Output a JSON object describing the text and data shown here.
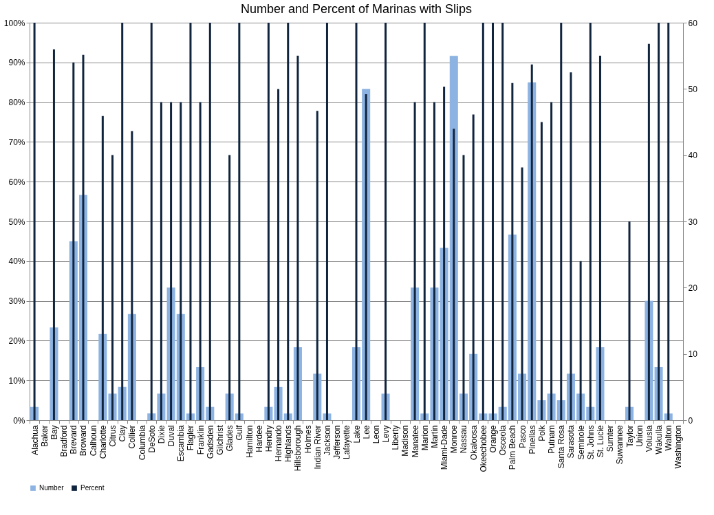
{
  "chart_data": {
    "type": "bar",
    "title": "Number and Percent of Marinas with Slips",
    "categories": [
      "Alachua",
      "Baker",
      "Bay",
      "Bradford",
      "Brevard",
      "Broward",
      "Calhoun",
      "Charlotte",
      "Citrus",
      "Clay",
      "Collier",
      "Columbia",
      "DeSoto",
      "Dixie",
      "Duval",
      "Escambia",
      "Flagler",
      "Franklin",
      "Gadsden",
      "Gilchrist",
      "Glades",
      "Gulf",
      "Hamilton",
      "Hardee",
      "Hendry",
      "Hernando",
      "Highlands",
      "Hillsborough",
      "Holmes",
      "Indian River",
      "Jackson",
      "Jefferson",
      "Lafayette",
      "Lake",
      "Lee",
      "Leon",
      "Levy",
      "Liberty",
      "Madison",
      "Manatee",
      "Marion",
      "Martin",
      "Miami-Dade",
      "Monroe",
      "Nassau",
      "Okaloosa",
      "Okeechobee",
      "Orange",
      "Osceola",
      "Palm Beach",
      "Pasco",
      "Pinellas",
      "Polk",
      "Putnam",
      "Santa Rosa",
      "Sarasota",
      "Seminole",
      "St. Johns",
      "St. Lucie",
      "Sumter",
      "Suwannee",
      "Taylor",
      "Union",
      "Volusia",
      "Wakulla",
      "Walton",
      "Washington"
    ],
    "series": [
      {
        "name": "Number",
        "color": "#8db3e2",
        "axis": "y2",
        "values": [
          2,
          0,
          14,
          0,
          27,
          34,
          0,
          13,
          4,
          5,
          16,
          0,
          1,
          4,
          20,
          16,
          1,
          8,
          2,
          0,
          4,
          1,
          0,
          0,
          2,
          5,
          1,
          11,
          0,
          7,
          1,
          0,
          0,
          11,
          50,
          0,
          4,
          0,
          0,
          20,
          1,
          20,
          26,
          55,
          4,
          10,
          1,
          1,
          2,
          28,
          7,
          51,
          3,
          4,
          3,
          7,
          4,
          2,
          11,
          0,
          0,
          2,
          0,
          18,
          8,
          1,
          0
        ]
      },
      {
        "name": "Percent",
        "color": "#10243e",
        "values": [
          100,
          0,
          93.3,
          0,
          90,
          91.9,
          0,
          76.5,
          66.7,
          100,
          72.7,
          0,
          100,
          80,
          80,
          80,
          100,
          80,
          100,
          0,
          66.7,
          100,
          0,
          0,
          100,
          83.3,
          100,
          91.7,
          0,
          77.8,
          100,
          0,
          0,
          100,
          82,
          0,
          100,
          0,
          0,
          80,
          100,
          80,
          83.9,
          73.3,
          66.7,
          76.9,
          100,
          100,
          100,
          84.8,
          63.6,
          89.5,
          75,
          80,
          100,
          87.5,
          40,
          100,
          91.7,
          0,
          0,
          50,
          0,
          94.7,
          100,
          100,
          0
        ]
      }
    ],
    "ylim": [
      0,
      100
    ],
    "yticks": [
      {
        "value": 0,
        "label": "0%"
      },
      {
        "value": 10,
        "label": "10%"
      },
      {
        "value": 20,
        "label": "20%"
      },
      {
        "value": 30,
        "label": "30%"
      },
      {
        "value": 40,
        "label": "40%"
      },
      {
        "value": 50,
        "label": "50%"
      },
      {
        "value": 60,
        "label": "60%"
      },
      {
        "value": 70,
        "label": "70%"
      },
      {
        "value": 80,
        "label": "80%"
      },
      {
        "value": 90,
        "label": "90%"
      },
      {
        "value": 100,
        "label": "100%"
      }
    ],
    "y2lim": [
      0,
      60
    ],
    "y2ticks": [
      0,
      10,
      20,
      30,
      40,
      50,
      60
    ],
    "grid": "y",
    "legend": "bottom"
  }
}
